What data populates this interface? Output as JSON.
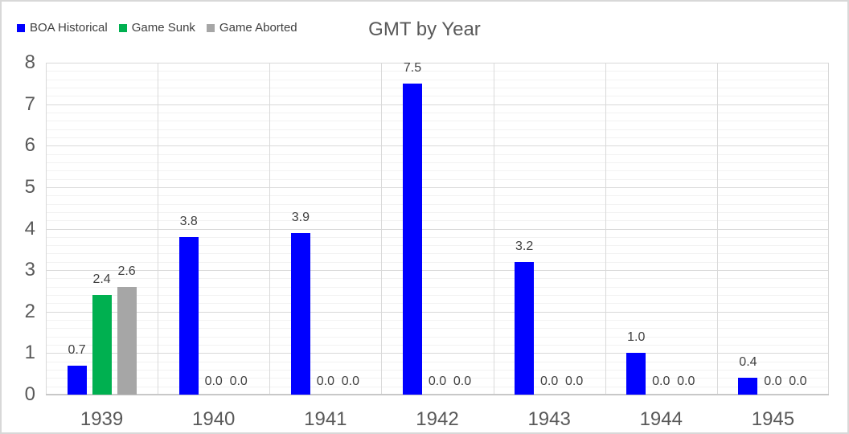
{
  "title": "GMT by Year",
  "legend": {
    "items": [
      {
        "label": "BOA Historical",
        "color": "#0000ff"
      },
      {
        "label": "Game Sunk",
        "color": "#00b050"
      },
      {
        "label": "Game Aborted",
        "color": "#a6a6a6"
      }
    ]
  },
  "chart_data": {
    "type": "bar",
    "title": "GMT by Year",
    "categories": [
      "1939",
      "1940",
      "1941",
      "1942",
      "1943",
      "1944",
      "1945"
    ],
    "series": [
      {
        "name": "BOA Historical",
        "color": "#0000ff",
        "values": [
          0.7,
          3.8,
          3.9,
          7.5,
          3.2,
          1.0,
          0.4
        ]
      },
      {
        "name": "Game Sunk",
        "color": "#00b050",
        "values": [
          2.4,
          0.0,
          0.0,
          0.0,
          0.0,
          0.0,
          0.0
        ]
      },
      {
        "name": "Game Aborted",
        "color": "#a6a6a6",
        "values": [
          2.6,
          0.0,
          0.0,
          0.0,
          0.0,
          0.0,
          0.0
        ]
      }
    ],
    "ylim": [
      0,
      8
    ],
    "y_major_ticks": [
      0,
      1,
      2,
      3,
      4,
      5,
      6,
      7,
      8
    ],
    "y_minor_step": 0.2,
    "data_labels": true,
    "label_decimals": 1,
    "grid": true,
    "legend_position": "top-left"
  },
  "colors": {
    "axis_text": "#595959",
    "data_label_text": "#404040",
    "major_grid": "#d9d9d9",
    "minor_grid": "#f2f2f2",
    "axis_line": "#c8c8c8",
    "frame_border": "#d8d8d8"
  }
}
